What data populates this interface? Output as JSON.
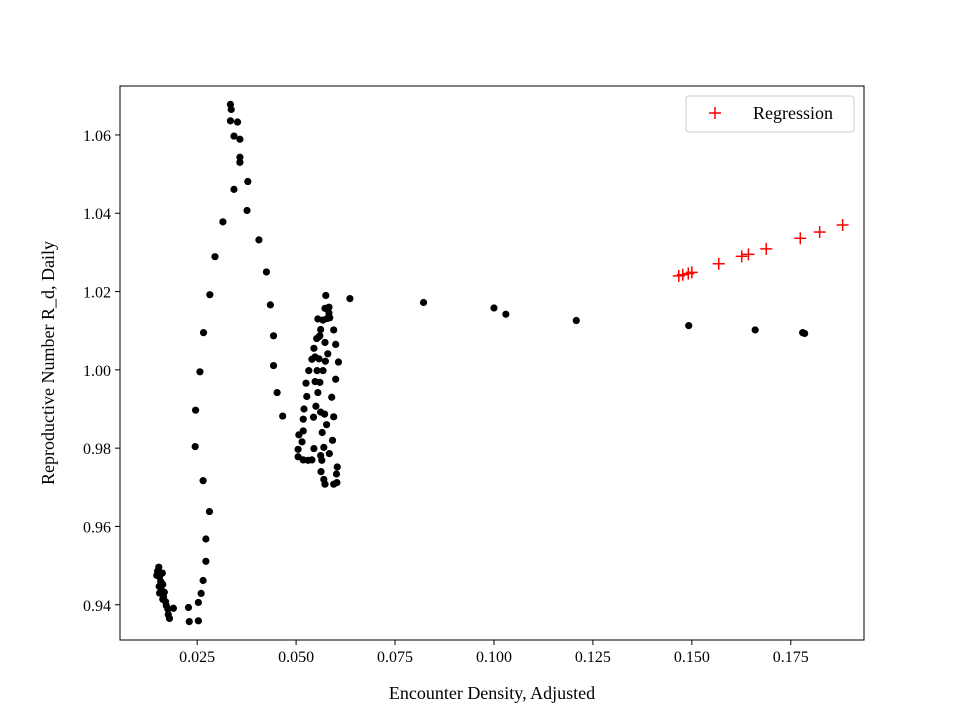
{
  "chart_data": {
    "type": "scatter",
    "title": "",
    "xlabel": "Encounter Density, Adjusted",
    "ylabel": "Reproductive Number R_d, Daily",
    "xlim": [
      0.0055,
      0.1935
    ],
    "ylim": [
      0.931,
      1.0725
    ],
    "x_ticks": [
      0.025,
      0.05,
      0.075,
      0.1,
      0.125,
      0.15,
      0.175
    ],
    "x_tick_labels": [
      "0.025",
      "0.050",
      "0.075",
      "0.100",
      "0.125",
      "0.150",
      "0.175"
    ],
    "y_ticks": [
      0.94,
      0.96,
      0.98,
      1.0,
      1.02,
      1.04,
      1.06
    ],
    "y_tick_labels": [
      "0.94",
      "0.96",
      "0.98",
      "1.00",
      "1.02",
      "1.04",
      "1.06"
    ],
    "grid": false,
    "legend_position": "top-right",
    "series": [
      {
        "marker": "circle",
        "color": "#000000",
        "points": [
          [
            0.0153,
            0.9496
          ],
          [
            0.015,
            0.9486
          ],
          [
            0.0155,
            0.9471
          ],
          [
            0.0148,
            0.9475
          ],
          [
            0.0162,
            0.9481
          ],
          [
            0.0158,
            0.9459
          ],
          [
            0.0163,
            0.9452
          ],
          [
            0.0154,
            0.9447
          ],
          [
            0.016,
            0.9437
          ],
          [
            0.0167,
            0.9432
          ],
          [
            0.0165,
            0.942
          ],
          [
            0.0155,
            0.943
          ],
          [
            0.017,
            0.9408
          ],
          [
            0.0172,
            0.9398
          ],
          [
            0.0176,
            0.9389
          ],
          [
            0.0177,
            0.9375
          ],
          [
            0.018,
            0.9365
          ],
          [
            0.0163,
            0.9414
          ],
          [
            0.019,
            0.9391
          ],
          [
            0.0228,
            0.9393
          ],
          [
            0.023,
            0.9357
          ],
          [
            0.0253,
            0.9359
          ],
          [
            0.0253,
            0.9406
          ],
          [
            0.026,
            0.9429
          ],
          [
            0.0265,
            0.9462
          ],
          [
            0.0272,
            0.9511
          ],
          [
            0.0272,
            0.9568
          ],
          [
            0.0281,
            0.9638
          ],
          [
            0.0265,
            0.9717
          ],
          [
            0.0245,
            0.9804
          ],
          [
            0.0246,
            0.9897
          ],
          [
            0.0257,
            0.9995
          ],
          [
            0.0266,
            1.0095
          ],
          [
            0.0282,
            1.0192
          ],
          [
            0.0295,
            1.0289
          ],
          [
            0.0315,
            1.0378
          ],
          [
            0.0334,
            1.0678
          ],
          [
            0.0336,
            1.0665
          ],
          [
            0.0334,
            1.0636
          ],
          [
            0.0352,
            1.0633
          ],
          [
            0.0343,
            1.0597
          ],
          [
            0.0358,
            1.0589
          ],
          [
            0.0358,
            1.0543
          ],
          [
            0.0358,
            1.053
          ],
          [
            0.0343,
            1.0461
          ],
          [
            0.0378,
            1.0481
          ],
          [
            0.0376,
            1.0407
          ],
          [
            0.0406,
            1.0332
          ],
          [
            0.0425,
            1.025
          ],
          [
            0.0435,
            1.0166
          ],
          [
            0.0443,
            1.0087
          ],
          [
            0.0443,
            1.0011
          ],
          [
            0.0452,
            0.9942
          ],
          [
            0.0466,
            0.9882
          ],
          [
            0.0507,
            0.9834
          ],
          [
            0.0518,
            0.9844
          ],
          [
            0.0515,
            0.9816
          ],
          [
            0.0505,
            0.9797
          ],
          [
            0.0505,
            0.9778
          ],
          [
            0.0518,
            0.977
          ],
          [
            0.0518,
            0.9874
          ],
          [
            0.052,
            0.99
          ],
          [
            0.0527,
            0.9932
          ],
          [
            0.0525,
            0.9966
          ],
          [
            0.0532,
            0.9998
          ],
          [
            0.054,
            1.0027
          ],
          [
            0.0545,
            1.0055
          ],
          [
            0.0548,
            1.0033
          ],
          [
            0.0552,
            1.008
          ],
          [
            0.0555,
            1.013
          ],
          [
            0.0558,
            1.0085
          ],
          [
            0.0558,
            1.0028
          ],
          [
            0.0553,
            0.9998
          ],
          [
            0.0548,
            0.997
          ],
          [
            0.0555,
            0.9942
          ],
          [
            0.055,
            0.9907
          ],
          [
            0.0544,
            0.9879
          ],
          [
            0.0545,
            0.9799
          ],
          [
            0.054,
            0.977
          ],
          [
            0.053,
            0.9769
          ],
          [
            0.0562,
            0.9781
          ],
          [
            0.0563,
            0.974
          ],
          [
            0.057,
            0.972
          ],
          [
            0.0573,
            0.9708
          ],
          [
            0.0565,
            0.9769
          ],
          [
            0.057,
            0.9802
          ],
          [
            0.0566,
            0.984
          ],
          [
            0.0562,
            0.9892
          ],
          [
            0.0572,
            0.9887
          ],
          [
            0.0577,
            0.986
          ],
          [
            0.0584,
            0.9786
          ],
          [
            0.0595,
            0.9708
          ],
          [
            0.0603,
            0.9712
          ],
          [
            0.0602,
            0.9734
          ],
          [
            0.0604,
            0.9752
          ],
          [
            0.0592,
            0.982
          ],
          [
            0.0595,
            0.988
          ],
          [
            0.059,
            0.993
          ],
          [
            0.06,
            0.9976
          ],
          [
            0.0607,
            1.002
          ],
          [
            0.06,
            1.0065
          ],
          [
            0.0595,
            1.0102
          ],
          [
            0.0585,
            1.0133
          ],
          [
            0.0583,
            1.016
          ],
          [
            0.0575,
            1.019
          ],
          [
            0.0573,
            1.0157
          ],
          [
            0.0568,
            1.0127
          ],
          [
            0.0562,
            1.0103
          ],
          [
            0.056,
            1.0087
          ],
          [
            0.0573,
            1.007
          ],
          [
            0.058,
            1.0041
          ],
          [
            0.0574,
            1.0022
          ],
          [
            0.0568,
            0.9998
          ],
          [
            0.056,
            0.9968
          ],
          [
            0.0578,
            1.0131
          ],
          [
            0.0583,
            1.0145
          ],
          [
            0.0636,
            1.0182
          ],
          [
            0.0822,
            1.0172
          ],
          [
            0.1,
            1.0158
          ],
          [
            0.103,
            1.0142
          ],
          [
            0.1208,
            1.0126
          ],
          [
            0.1492,
            1.0113
          ],
          [
            0.166,
            1.0102
          ],
          [
            0.178,
            1.0095
          ],
          [
            0.1785,
            1.0093
          ]
        ]
      },
      {
        "name": "Regression",
        "marker": "plus",
        "color": "#ff0000",
        "points": [
          [
            0.1467,
            1.024
          ],
          [
            0.1477,
            1.0243
          ],
          [
            0.1491,
            1.0246
          ],
          [
            0.15,
            1.0249
          ],
          [
            0.1568,
            1.0271
          ],
          [
            0.1626,
            1.029
          ],
          [
            0.1643,
            1.0295
          ],
          [
            0.1688,
            1.0309
          ],
          [
            0.1774,
            1.0336
          ],
          [
            0.1823,
            1.0352
          ],
          [
            0.1881,
            1.037
          ]
        ]
      }
    ]
  }
}
